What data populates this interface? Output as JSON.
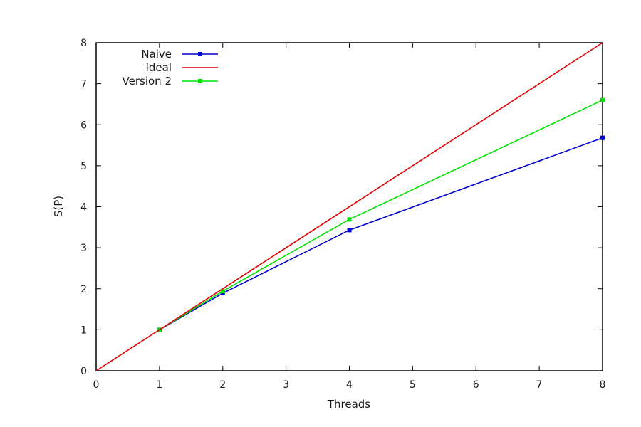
{
  "chart_data": {
    "type": "line",
    "title": "",
    "xlabel": "Threads",
    "ylabel": "S(P)",
    "xlim": [
      0,
      8
    ],
    "ylim": [
      0,
      8
    ],
    "xticks": [
      "0",
      "1",
      "2",
      "3",
      "4",
      "5",
      "6",
      "7",
      "8"
    ],
    "yticks": [
      "0",
      "1",
      "2",
      "3",
      "4",
      "5",
      "6",
      "7",
      "8"
    ],
    "grid": false,
    "legend_position": "top-left",
    "series": [
      {
        "name": "Naive",
        "color": "#0000cc",
        "marker": "square",
        "points": [
          [
            1,
            1.0
          ],
          [
            2,
            1.89
          ],
          [
            4,
            3.43
          ],
          [
            8,
            5.68
          ]
        ]
      },
      {
        "name": "Ideal",
        "color": "#e00000",
        "marker": "none",
        "points": [
          [
            0,
            0
          ],
          [
            8,
            8
          ]
        ]
      },
      {
        "name": "Version 2",
        "color": "#00e000",
        "marker": "square",
        "points": [
          [
            1,
            1.0
          ],
          [
            2,
            1.94
          ],
          [
            4,
            3.69
          ],
          [
            8,
            6.6
          ]
        ]
      }
    ]
  }
}
